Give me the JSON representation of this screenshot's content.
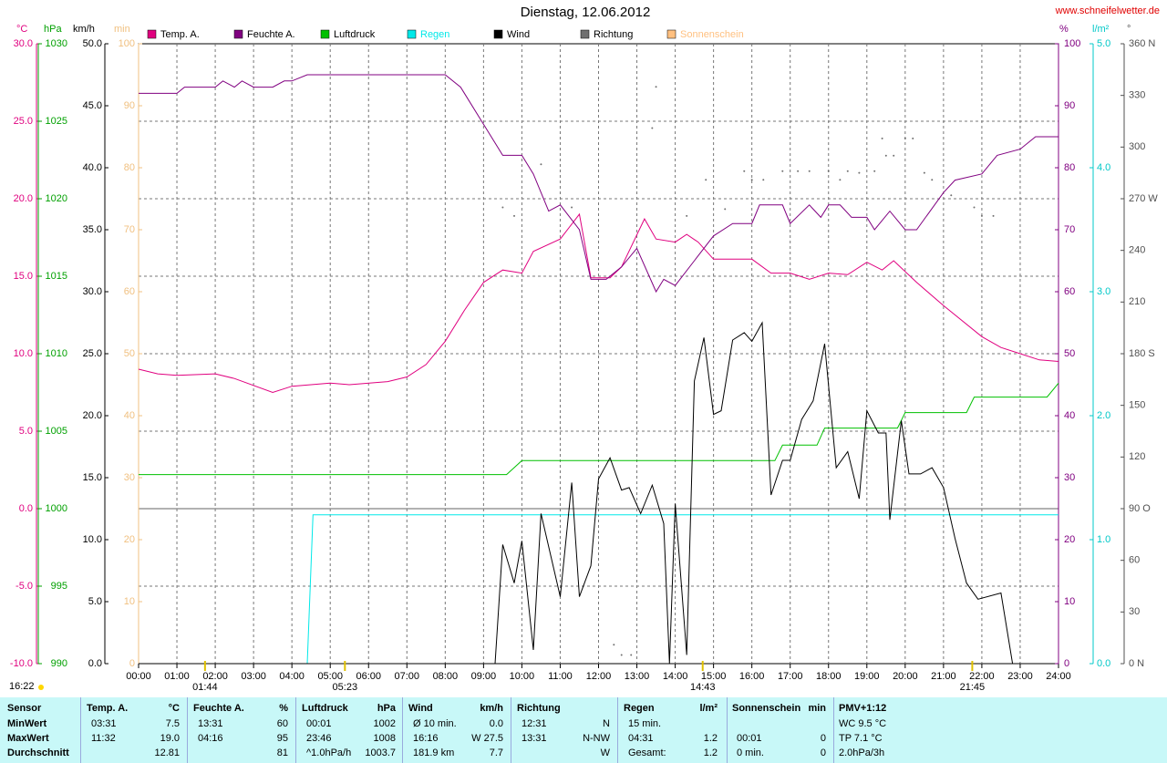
{
  "site": "www.schneifelwetter.de",
  "chart_data": {
    "type": "line",
    "title": "Dienstag, 12.06.2012",
    "timestamp": "16:22",
    "xlim": [
      0,
      24
    ],
    "xticks": [
      {
        "value": 0,
        "label": "00:00"
      },
      {
        "value": 1,
        "label": "01:00"
      },
      {
        "value": 2,
        "label": "02:00"
      },
      {
        "value": 3,
        "label": "03:00"
      },
      {
        "value": 4,
        "label": "04:00"
      },
      {
        "value": 5,
        "label": "05:00"
      },
      {
        "value": 6,
        "label": "06:00"
      },
      {
        "value": 7,
        "label": "07:00"
      },
      {
        "value": 8,
        "label": "08:00"
      },
      {
        "value": 9,
        "label": "09:00"
      },
      {
        "value": 10,
        "label": "10:00"
      },
      {
        "value": 11,
        "label": "11:00"
      },
      {
        "value": 12,
        "label": "12:00"
      },
      {
        "value": 13,
        "label": "13:00"
      },
      {
        "value": 14,
        "label": "14:00"
      },
      {
        "value": 15,
        "label": "15:00"
      },
      {
        "value": 16,
        "label": "16:00"
      },
      {
        "value": 17,
        "label": "17:00"
      },
      {
        "value": 18,
        "label": "18:00"
      },
      {
        "value": 19,
        "label": "19:00"
      },
      {
        "value": 20,
        "label": "20:00"
      },
      {
        "value": 21,
        "label": "21:00"
      },
      {
        "value": 22,
        "label": "22:00"
      },
      {
        "value": 23,
        "label": "23:00"
      },
      {
        "value": 24,
        "label": "24:00"
      }
    ],
    "grid": true,
    "ylabel": "°C",
    "ylim": [
      -10,
      30
    ],
    "yticks": [
      {
        "value": -10,
        "label": "-10.0"
      },
      {
        "value": -5,
        "label": "-5.0"
      },
      {
        "value": 0,
        "label": "0.0"
      },
      {
        "value": 5,
        "label": "5.0"
      },
      {
        "value": 10,
        "label": "10.0"
      },
      {
        "value": 15,
        "label": "15.0"
      },
      {
        "value": 20,
        "label": "20.0"
      },
      {
        "value": 25,
        "label": "25.0"
      },
      {
        "value": 30,
        "label": "30.0"
      }
    ],
    "y2label": "hPa",
    "y2lim": [
      990,
      1030
    ],
    "y2ticks": [
      990,
      995,
      1000,
      1005,
      1010,
      1015,
      1020,
      1025,
      1030
    ],
    "y3label": "km/h",
    "y3lim": [
      0,
      50
    ],
    "y3ticks": [
      {
        "value": 0,
        "label": "0.0"
      },
      {
        "value": 5,
        "label": "5.0"
      },
      {
        "value": 10,
        "label": "10.0"
      },
      {
        "value": 15,
        "label": "15.0"
      },
      {
        "value": 20,
        "label": "20.0"
      },
      {
        "value": 25,
        "label": "25.0"
      },
      {
        "value": 30,
        "label": "30.0"
      },
      {
        "value": 35,
        "label": "35.0"
      },
      {
        "value": 40,
        "label": "40.0"
      },
      {
        "value": 45,
        "label": "45.0"
      },
      {
        "value": 50,
        "label": "50.0"
      }
    ],
    "y4label": "min",
    "y4lim": [
      0,
      100
    ],
    "y4ticks": [
      0,
      10,
      20,
      30,
      40,
      50,
      60,
      70,
      80,
      90,
      100
    ],
    "y5label": "%",
    "y5lim": [
      0,
      100
    ],
    "y5ticks": [
      0,
      10,
      20,
      30,
      40,
      50,
      60,
      70,
      80,
      90,
      100
    ],
    "y6label": "l/m²",
    "y6lim": [
      0,
      5
    ],
    "y6ticks": [
      {
        "value": 0,
        "label": "0.0"
      },
      {
        "value": 1,
        "label": "1.0"
      },
      {
        "value": 2,
        "label": "2.0"
      },
      {
        "value": 3,
        "label": "3.0"
      },
      {
        "value": 4,
        "label": "4.0"
      },
      {
        "value": 5,
        "label": "5.0"
      }
    ],
    "y7label": "°",
    "y7lim": [
      0,
      360
    ],
    "y7ticks": [
      {
        "value": 0,
        "label": "0 N"
      },
      30,
      60,
      {
        "value": 90,
        "label": "90 O"
      },
      120,
      150,
      {
        "value": 180,
        "label": "180 S"
      },
      210,
      240,
      {
        "value": 270,
        "label": "270 W"
      },
      300,
      330,
      {
        "value": 360,
        "label": "360 N"
      }
    ],
    "annotations": [
      {
        "x": 1.733,
        "text": "01:44"
      },
      {
        "x": 5.383,
        "text": "05:23"
      },
      {
        "x": 14.717,
        "text": "14:43"
      },
      {
        "x": 21.75,
        "text": "21:45"
      }
    ],
    "series": [
      {
        "name": "Temp. A.",
        "color": "#e0007f",
        "axis": "y",
        "x": [
          0,
          0.5,
          1,
          2,
          2.5,
          3.5,
          4,
          5,
          5.5,
          6.5,
          7,
          7.5,
          8,
          8.5,
          9,
          9.5,
          10,
          10.3,
          11,
          11.5,
          11.8,
          12.3,
          12.6,
          13.2,
          13.5,
          14,
          14.3,
          14.6,
          15,
          16,
          16.5,
          17,
          17.5,
          18,
          18.5,
          19,
          19.4,
          19.7,
          20.3,
          21,
          22,
          22.5,
          23,
          23.5,
          24
        ],
        "values": [
          9.0,
          8.7,
          8.6,
          8.7,
          8.4,
          7.5,
          7.9,
          8.1,
          8.0,
          8.2,
          8.5,
          9.3,
          10.8,
          12.8,
          14.6,
          15.4,
          15.2,
          16.6,
          17.4,
          19.0,
          14.9,
          14.9,
          15.6,
          18.7,
          17.4,
          17.2,
          17.7,
          17.2,
          16.1,
          16.1,
          15.2,
          15.2,
          14.8,
          15.2,
          15.1,
          15.9,
          15.4,
          16.0,
          14.6,
          13.1,
          11.1,
          10.4,
          10.0,
          9.6,
          9.5
        ]
      },
      {
        "name": "Feuchte A.",
        "color": "#800080",
        "axis": "y5",
        "x": [
          0,
          1,
          1.2,
          2,
          2.2,
          2.5,
          2.7,
          3,
          3.5,
          3.8,
          4,
          4.4,
          8,
          8.4,
          9,
          9.5,
          10,
          10.3,
          10.7,
          11,
          11.5,
          11.8,
          12.2,
          12.6,
          13,
          13.5,
          13.7,
          14,
          14.5,
          15,
          15.5,
          16,
          16.2,
          16.8,
          17,
          17.5,
          17.8,
          18,
          18.3,
          18.6,
          19,
          19.2,
          19.6,
          20,
          20.3,
          21,
          21.3,
          22,
          22.4,
          23,
          23.4,
          24
        ],
        "values": [
          92,
          92,
          93,
          93,
          94,
          93,
          94,
          93,
          93,
          94,
          94,
          95,
          95,
          93,
          87,
          82,
          82,
          79,
          73,
          74,
          70,
          62,
          62,
          64,
          67,
          60,
          62,
          61,
          65,
          69,
          71,
          71,
          74,
          74,
          71,
          74,
          72,
          74,
          74,
          72,
          72,
          70,
          73,
          70,
          70,
          76,
          78,
          79,
          82,
          83,
          85,
          85
        ]
      },
      {
        "name": "Luftdruck",
        "color": "#00c000",
        "axis": "y2",
        "x": [
          0,
          9.6,
          10,
          16.6,
          16.8,
          17.7,
          17.9,
          19.8,
          20,
          21.6,
          21.8,
          23.7,
          24
        ],
        "values": [
          1002.2,
          1002.2,
          1003.1,
          1003.1,
          1004.1,
          1004.1,
          1005.2,
          1005.2,
          1006.2,
          1006.2,
          1007.2,
          1007.2,
          1008.1
        ]
      },
      {
        "name": "Regen",
        "color": "#00e8e8",
        "axis": "y6",
        "x": [
          0,
          4.4,
          4.55,
          24
        ],
        "values": [
          0,
          0,
          1.2,
          1.2
        ]
      },
      {
        "name": "Wind",
        "color": "#000000",
        "axis": "y3",
        "x": [
          0,
          9.3,
          9.5,
          9.8,
          10,
          10.3,
          10.5,
          11,
          11.3,
          11.5,
          11.8,
          12,
          12.3,
          12.6,
          12.8,
          13.1,
          13.4,
          13.7,
          13.85,
          14,
          14.3,
          14.5,
          14.75,
          15,
          15.2,
          15.5,
          15.8,
          16,
          16.27,
          16.5,
          16.8,
          17,
          17.3,
          17.6,
          17.9,
          18.2,
          18.5,
          18.8,
          19,
          19.3,
          19.5,
          19.6,
          19.9,
          20.1,
          20.4,
          20.7,
          21,
          21.3,
          21.6,
          21.9,
          22.5,
          22.8,
          23
        ],
        "values": [
          0,
          0,
          9.6,
          6.5,
          9.9,
          1.1,
          12.1,
          5.4,
          14.6,
          5.4,
          7.9,
          14.9,
          16.6,
          14.0,
          14.2,
          12.1,
          14.4,
          11.3,
          0,
          12.9,
          0.7,
          22.8,
          26.3,
          20.1,
          20.4,
          26.1,
          26.7,
          26.0,
          27.5,
          13.6,
          16.4,
          16.4,
          19.7,
          21.2,
          25.8,
          15.8,
          17.1,
          13.3,
          20.4,
          18.6,
          18.6,
          11.6,
          19.6,
          15.3,
          15.3,
          15.8,
          14.2,
          10.1,
          6.5,
          5.2,
          5.7,
          0,
          0
        ]
      },
      {
        "name": "Richtung",
        "color": "#707070",
        "axis": "y7",
        "type": "scatter",
        "x": [
          9.5,
          9.8,
          10.5,
          11.3,
          12.4,
          12.6,
          12.85,
          13.4,
          13.5,
          14.3,
          14.8,
          15.3,
          15.8,
          16,
          16.3,
          16.8,
          17.2,
          17.5,
          18,
          18.3,
          18.5,
          18.8,
          19.2,
          19.4,
          19.5,
          19.7,
          20,
          20.2,
          20.5,
          20.7,
          21.2,
          21.8,
          22,
          22.3
        ],
        "values": [
          265,
          260,
          290,
          265,
          11,
          5,
          5,
          311,
          335,
          260,
          281,
          264,
          286,
          281,
          281,
          286,
          286,
          286,
          286,
          281,
          286,
          285,
          286,
          305,
          295,
          295,
          305,
          305,
          285,
          281,
          272,
          265,
          260,
          260
        ]
      },
      {
        "name": "Sonnenschein",
        "color": "#ffc080",
        "axis": "y4",
        "x": [],
        "values": []
      }
    ]
  },
  "table": {
    "header": [
      "Sensor",
      "Temp. A.",
      "°C",
      "Feuchte A.",
      "%",
      "Luftdruck",
      "hPa",
      "Wind",
      "km/h",
      "Richtung",
      null,
      "Regen",
      "l/m²",
      "Sonnenschein",
      "min",
      "PMV+1:12"
    ],
    "rows": [
      [
        "MinWert",
        "03:31",
        "7.5",
        "13:31",
        "60",
        "00:01",
        "1002",
        "Ø 10 min.",
        "0.0",
        "12:31",
        "N",
        "15 min.",
        null,
        null,
        null,
        "WC 9.5 °C"
      ],
      [
        "MaxWert",
        "11:32",
        "19.0",
        "04:16",
        "95",
        "23:46",
        "1008",
        "16:16",
        "W 27.5",
        "13:31",
        "N-NW",
        "04:31",
        "1.2",
        "00:01",
        "0",
        "TP 7.1 °C"
      ],
      [
        "Durchschnitt",
        null,
        "12.81",
        null,
        "81",
        "^1.0hPa/h",
        "1003.7",
        "181.9 km",
        "7.7",
        null,
        "W",
        "Gesamt:",
        "1.2",
        "0 min.",
        "0",
        "2.0hPa/3h"
      ]
    ]
  }
}
